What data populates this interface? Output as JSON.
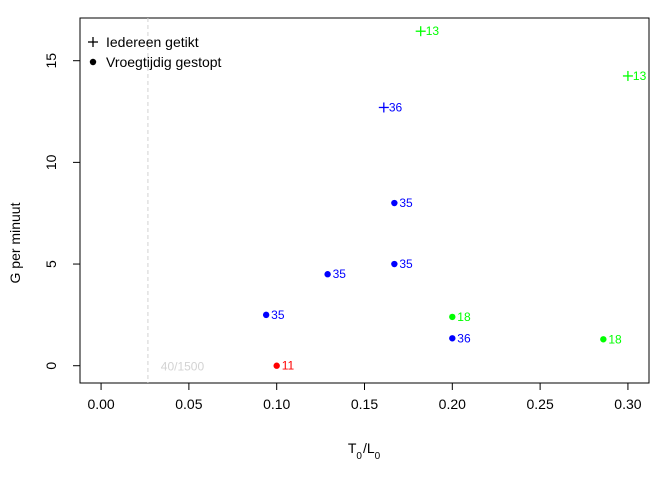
{
  "chart_data": {
    "type": "scatter",
    "xlabel": {
      "main": "T",
      "sub1": "0",
      "sep": "/",
      "main2": "L",
      "sub2": "0"
    },
    "ylabel": "G per minuut",
    "xlim": [
      -0.012,
      0.312
    ],
    "ylim": [
      -0.85,
      17.1
    ],
    "xticks": [
      0.0,
      0.05,
      0.1,
      0.15,
      0.2,
      0.25,
      0.3
    ],
    "xtick_labels": [
      "0.00",
      "0.05",
      "0.10",
      "0.15",
      "0.20",
      "0.25",
      "0.30"
    ],
    "yticks": [
      0,
      5,
      10,
      15
    ],
    "ytick_labels": [
      "0",
      "5",
      "10",
      "15"
    ],
    "legend": {
      "position": "top-left",
      "entries": [
        {
          "symbol": "plus",
          "label": "Iedereen getikt"
        },
        {
          "symbol": "dot",
          "label": "Vroegtijdig gestopt"
        }
      ]
    },
    "reference_line": {
      "x": 0.02667,
      "style": "dashed",
      "color": "#d3d3d3",
      "label": "40/1500",
      "label_x": 0.034,
      "label_y": 0
    },
    "colors": {
      "blue": "#0000ff",
      "green": "#00ff00",
      "red": "#ff0000"
    },
    "points": [
      {
        "x": 0.182,
        "y": 16.45,
        "marker": "plus",
        "color": "#00ff00",
        "label": "13"
      },
      {
        "x": 0.3,
        "y": 14.25,
        "marker": "plus",
        "color": "#00ff00",
        "label": "13"
      },
      {
        "x": 0.161,
        "y": 12.7,
        "marker": "plus",
        "color": "#0000ff",
        "label": "36"
      },
      {
        "x": 0.167,
        "y": 8.0,
        "marker": "dot",
        "color": "#0000ff",
        "label": "35"
      },
      {
        "x": 0.167,
        "y": 5.0,
        "marker": "dot",
        "color": "#0000ff",
        "label": "35"
      },
      {
        "x": 0.129,
        "y": 4.5,
        "marker": "dot",
        "color": "#0000ff",
        "label": "35"
      },
      {
        "x": 0.094,
        "y": 2.5,
        "marker": "dot",
        "color": "#0000ff",
        "label": "35"
      },
      {
        "x": 0.2,
        "y": 2.4,
        "marker": "dot",
        "color": "#00ff00",
        "label": "18"
      },
      {
        "x": 0.2,
        "y": 1.35,
        "marker": "dot",
        "color": "#0000ff",
        "label": "36"
      },
      {
        "x": 0.286,
        "y": 1.3,
        "marker": "dot",
        "color": "#00ff00",
        "label": "18"
      },
      {
        "x": 0.1,
        "y": 0.0,
        "marker": "dot",
        "color": "#ff0000",
        "label": "11"
      }
    ]
  }
}
